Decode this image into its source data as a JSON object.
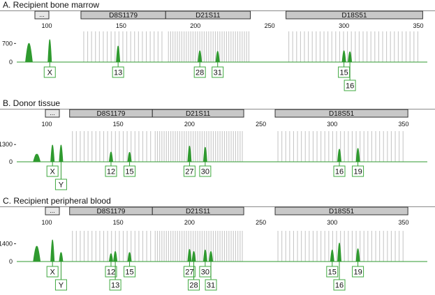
{
  "figure": {
    "panels": [
      {
        "title": "A. Recipient bone marrow",
        "ytick": "700",
        "ytick_zero": "0",
        "ellipsis": "..."
      },
      {
        "title": "B. Donor tissue",
        "ytick": "1300",
        "ytick_zero": "0",
        "ellipsis": "..."
      },
      {
        "title": "C. Recipient peripheral blood",
        "ytick": "1400",
        "ytick_zero": "0",
        "ellipsis": "..."
      }
    ]
  },
  "chart_data": [
    {
      "type": "line",
      "title": "A. Recipient bone marrow",
      "x_ticks": [
        100,
        150,
        200,
        250,
        300,
        350
      ],
      "xlim": [
        82,
        358
      ],
      "y_ticks": [
        0,
        700
      ],
      "ylim": [
        0,
        1050
      ],
      "loci": [
        {
          "name": "D8S1179",
          "start": 123,
          "end": 180
        },
        {
          "name": "D21S11",
          "start": 180,
          "end": 237
        },
        {
          "name": "D18S51",
          "start": 261,
          "end": 353
        }
      ],
      "peaks": [
        {
          "x": 88,
          "height": 700,
          "label": ""
        },
        {
          "x": 102,
          "height": 840,
          "label": "X"
        },
        {
          "x": 148,
          "height": 600,
          "label": "13"
        },
        {
          "x": 203,
          "height": 420,
          "label": "28"
        },
        {
          "x": 215,
          "height": 400,
          "label": "31"
        },
        {
          "x": 300,
          "height": 420,
          "label": "15"
        },
        {
          "x": 304,
          "height": 380,
          "label": "16"
        }
      ]
    },
    {
      "type": "line",
      "title": "B. Donor tissue",
      "x_ticks": [
        100,
        150,
        200,
        250,
        300,
        350
      ],
      "xlim": [
        82,
        358
      ],
      "y_ticks": [
        0,
        1300
      ],
      "ylim": [
        0,
        2100
      ],
      "loci": [
        {
          "name": "D8S1179",
          "start": 116,
          "end": 174
        },
        {
          "name": "D21S11",
          "start": 174,
          "end": 238
        },
        {
          "name": "D18S51",
          "start": 260,
          "end": 353
        }
      ],
      "peaks": [
        {
          "x": 93,
          "height": 560,
          "label": ""
        },
        {
          "x": 104,
          "height": 1250,
          "label": "X"
        },
        {
          "x": 110,
          "height": 1250,
          "label": "Y"
        },
        {
          "x": 145,
          "height": 720,
          "label": "12"
        },
        {
          "x": 158,
          "height": 700,
          "label": "15"
        },
        {
          "x": 200,
          "height": 1180,
          "label": "27"
        },
        {
          "x": 211,
          "height": 1080,
          "label": "30"
        },
        {
          "x": 305,
          "height": 940,
          "label": "16"
        },
        {
          "x": 318,
          "height": 1000,
          "label": "19"
        }
      ]
    },
    {
      "type": "line",
      "title": "C. Recipient peripheral blood",
      "x_ticks": [
        100,
        150,
        200,
        250,
        300,
        350
      ],
      "xlim": [
        82,
        358
      ],
      "y_ticks": [
        0,
        1400
      ],
      "ylim": [
        0,
        2200
      ],
      "loci": [
        {
          "name": "D8S1179",
          "start": 116,
          "end": 174
        },
        {
          "name": "D21S11",
          "start": 174,
          "end": 238
        },
        {
          "name": "D18S51",
          "start": 260,
          "end": 353
        }
      ],
      "peaks": [
        {
          "x": 93,
          "height": 1200,
          "label": ""
        },
        {
          "x": 104,
          "height": 1700,
          "label": "X"
        },
        {
          "x": 110,
          "height": 700,
          "label": "Y"
        },
        {
          "x": 145,
          "height": 600,
          "label": "12"
        },
        {
          "x": 148,
          "height": 780,
          "label": "13"
        },
        {
          "x": 158,
          "height": 700,
          "label": "15"
        },
        {
          "x": 200,
          "height": 950,
          "label": "27"
        },
        {
          "x": 203,
          "height": 780,
          "label": "28"
        },
        {
          "x": 211,
          "height": 900,
          "label": "30"
        },
        {
          "x": 215,
          "height": 780,
          "label": "31"
        },
        {
          "x": 300,
          "height": 900,
          "label": "15"
        },
        {
          "x": 305,
          "height": 1450,
          "label": "16"
        },
        {
          "x": 318,
          "height": 1000,
          "label": "19"
        }
      ]
    }
  ],
  "colors": {
    "trace": "#2f9a2f",
    "label_box": "#3fa83f",
    "bin_line": "#c8c8c8",
    "locus_bar_fill": "#c8c8c8",
    "locus_bar_border": "#333333",
    "axis": "#333333"
  }
}
